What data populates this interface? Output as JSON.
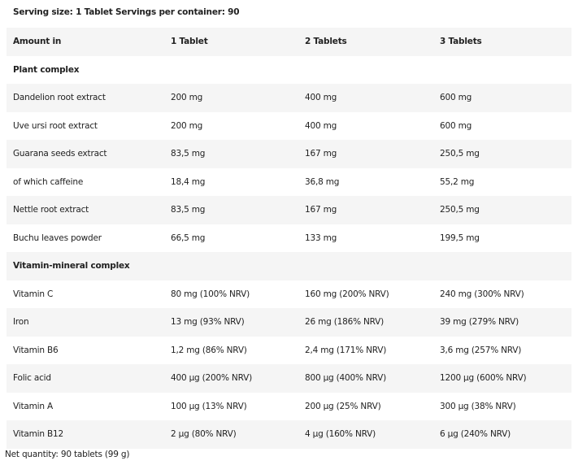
{
  "serving": "Serving size: 1 Tablet  Servings per container: 90",
  "header": [
    "Amount in",
    "1 Tablet",
    "2 Tablets",
    "3 Tablets"
  ],
  "rows": [
    {
      "bold": true,
      "cells": [
        "Plant complex",
        "",
        "",
        ""
      ]
    },
    {
      "cells": [
        "Dandelion root extract",
        "200 mg",
        "400 mg",
        "600 mg"
      ]
    },
    {
      "cells": [
        "Uve ursi root extract",
        "200 mg",
        "400 mg",
        "600 mg"
      ]
    },
    {
      "cells": [
        "Guarana seeds extract",
        "83,5 mg",
        "167 mg",
        "250,5 mg"
      ]
    },
    {
      "cells": [
        "of which caffeine",
        "18,4 mg",
        "36,8 mg",
        "55,2 mg"
      ]
    },
    {
      "cells": [
        "Nettle root extract",
        "83,5 mg",
        "167 mg",
        "250,5 mg"
      ]
    },
    {
      "cells": [
        "Buchu leaves powder",
        "66,5 mg",
        "133 mg",
        "199,5 mg"
      ]
    },
    {
      "bold": true,
      "cells": [
        "Vitamin-mineral complex",
        "",
        "",
        ""
      ]
    },
    {
      "cells": [
        "Vitamin C",
        "80 mg (100% NRV)",
        "160 mg (200% NRV)",
        "240 mg (300% NRV)"
      ]
    },
    {
      "cells": [
        "Iron",
        "13 mg (93% NRV)",
        "26 mg (186% NRV)",
        "39 mg (279% NRV)"
      ]
    },
    {
      "cells": [
        "Vitamin B6",
        "1,2 mg (86% NRV)",
        "2,4 mg (171% NRV)",
        "3,6 mg (257% NRV)"
      ]
    },
    {
      "cells": [
        "Folic acid",
        "400 µg (200% NRV)",
        "800 µg (400% NRV)",
        "1200 µg (600% NRV)"
      ]
    },
    {
      "cells": [
        "Vitamin A",
        "100 µg (13% NRV)",
        "200 µg (25% NRV)",
        "300 µg (38% NRV)"
      ]
    },
    {
      "cells": [
        "Vitamin B12",
        "2  µg (80% NRV)",
        "4 µg (160% NRV)",
        "6 µg (240% NRV)"
      ]
    }
  ],
  "net": "Net quantity: 90 tablets (99 g)"
}
